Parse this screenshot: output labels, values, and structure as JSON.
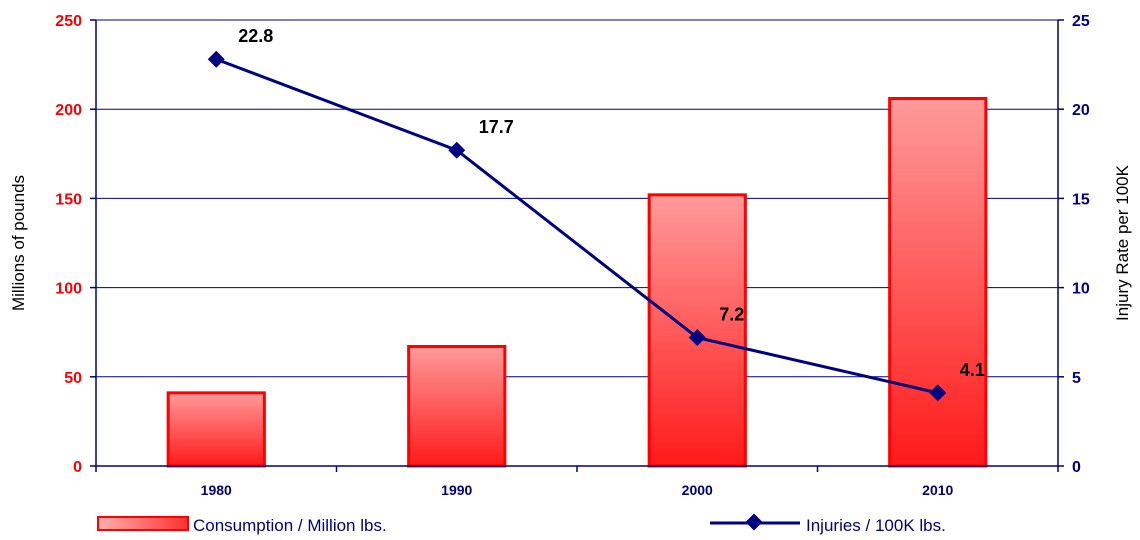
{
  "chart_data": {
    "type": "bar",
    "categories": [
      "1980",
      "1990",
      "2000",
      "2010"
    ],
    "series": [
      {
        "name": "Consumption / Million lbs.",
        "kind": "bar",
        "axis": "left",
        "values": [
          41,
          67,
          152,
          206
        ],
        "color": "#ff0000"
      },
      {
        "name": "Injuries / 100K lbs.",
        "kind": "line",
        "axis": "right",
        "values": [
          22.8,
          17.7,
          7.2,
          4.1
        ],
        "labels": [
          "22.8",
          "17.7",
          "7.2",
          "4.1"
        ],
        "color": "#000080"
      }
    ],
    "ylabel": "Millions of pounds",
    "y2label": "Injury Rate per 100K",
    "ylim": [
      0,
      250
    ],
    "y2lim": [
      0,
      25
    ],
    "yticks": [
      "0",
      "50",
      "100",
      "150",
      "200",
      "250"
    ],
    "y2ticks": [
      "0",
      "5",
      "10",
      "15",
      "20",
      "25"
    ],
    "grid": true,
    "legend_position": "bottom"
  }
}
